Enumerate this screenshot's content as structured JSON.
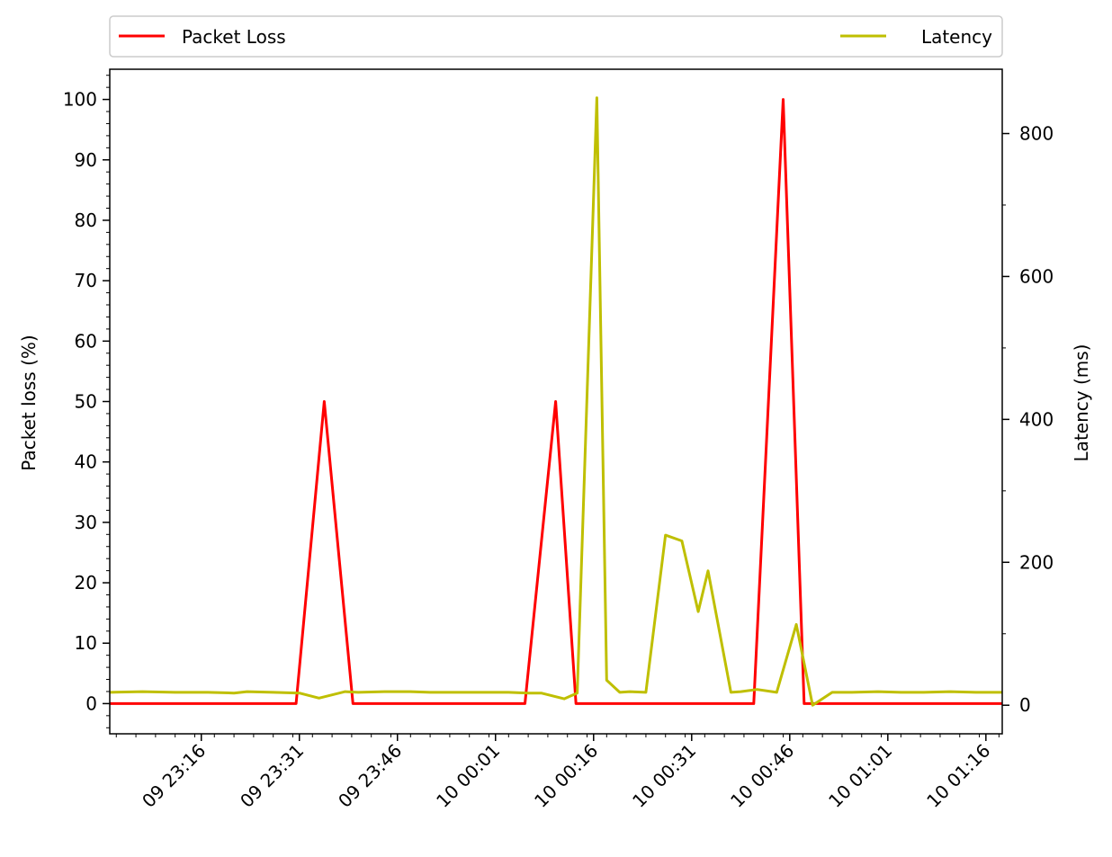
{
  "chart_data": {
    "type": "line",
    "title": "",
    "xlabel": "",
    "ylabel_left": "Packet loss (%)",
    "ylabel_right": "Latency (ms)",
    "x_ticks": [
      "09 23:16",
      "09 23:31",
      "09 23:46",
      "10 00:01",
      "10 00:16",
      "10 00:31",
      "10 00:46",
      "10 01:01",
      "10 01:16"
    ],
    "x_tick_minutes": [
      16,
      31,
      46,
      61,
      76,
      91,
      106,
      121,
      136
    ],
    "xlim_minutes": [
      2.0,
      138.5
    ],
    "ylim_left": [
      -5,
      105
    ],
    "ylim_right": [
      -40,
      890
    ],
    "y_ticks_left": [
      "0",
      "10",
      "20",
      "30",
      "40",
      "50",
      "60",
      "70",
      "80",
      "90",
      "100"
    ],
    "y_ticks_right": [
      "0",
      "200",
      "400",
      "600",
      "800"
    ],
    "legend_position": "top (above plot, spanning width)",
    "grid": false,
    "series": [
      {
        "name": "Packet Loss",
        "axis": "left",
        "color": "#ff0000",
        "x": [
          2.0,
          30.5,
          34.8,
          39.2,
          65.5,
          70.2,
          73.3,
          100.5,
          105.0,
          108.2,
          138.5
        ],
        "y": [
          0,
          0,
          50,
          0,
          0,
          50,
          0,
          0,
          100,
          0,
          0
        ]
      },
      {
        "name": "Latency",
        "axis": "right",
        "color": "#bfbf00",
        "x": [
          2.0,
          7.0,
          12.0,
          17.0,
          21.0,
          23.0,
          27.0,
          31.0,
          34.0,
          38.0,
          40.0,
          44.0,
          48.0,
          51.0,
          55.0,
          59.0,
          63.0,
          66.0,
          68.0,
          71.5,
          73.5,
          76.5,
          78.0,
          80.0,
          81.5,
          84.0,
          87.0,
          89.5,
          92.0,
          93.5,
          97.0,
          98.5,
          101.0,
          104.0,
          107.0,
          109.5,
          112.5,
          115.5,
          119.5,
          123.0,
          126.5,
          130.5,
          134.5,
          138.5
        ],
        "y": [
          18,
          19,
          18,
          18,
          17,
          19,
          18,
          17,
          10,
          19,
          18,
          19,
          19,
          18,
          18,
          18,
          18,
          17,
          17,
          9,
          17,
          850,
          35,
          18,
          19,
          18,
          238,
          230,
          131,
          188,
          18,
          19,
          22,
          18,
          113,
          0,
          18,
          18,
          19,
          18,
          18,
          19,
          18,
          18
        ]
      }
    ]
  }
}
